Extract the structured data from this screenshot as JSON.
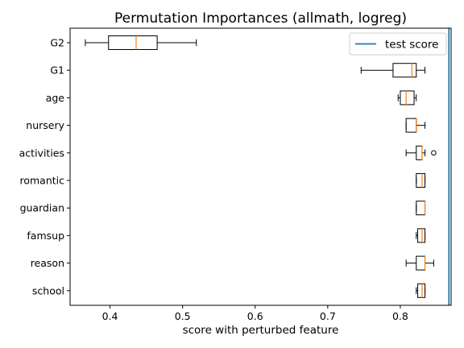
{
  "chart_data": {
    "type": "boxplot",
    "orientation": "horizontal",
    "title": "Permutation Importances (allmath, logreg)",
    "xlabel": "score with perturbed feature",
    "xlim": [
      0.345,
      0.87
    ],
    "xticks": [
      "0.4",
      "0.5",
      "0.6",
      "0.7",
      "0.8"
    ],
    "xtick_values": [
      0.4,
      0.5,
      0.6,
      0.7,
      0.8
    ],
    "grid": false,
    "legend": {
      "placement": "top-right",
      "label": "test score"
    },
    "reference_line": {
      "label": "test score",
      "value": 0.867,
      "color": "#1f77b4"
    },
    "colors": {
      "box": "#000000",
      "median": "#ff7f0e",
      "flier": "#000000"
    },
    "features": [
      {
        "name": "G2",
        "whisker_low": 0.366,
        "q1": 0.398,
        "median": 0.436,
        "q3": 0.465,
        "whisker_high": 0.519,
        "fliers": []
      },
      {
        "name": "G1",
        "whisker_low": 0.746,
        "q1": 0.79,
        "median": 0.816,
        "q3": 0.822,
        "whisker_high": 0.834,
        "fliers": []
      },
      {
        "name": "age",
        "whisker_low": 0.797,
        "q1": 0.8,
        "median": 0.808,
        "q3": 0.819,
        "whisker_high": 0.822,
        "fliers": []
      },
      {
        "name": "nursery",
        "whisker_low": 0.808,
        "q1": 0.808,
        "median": 0.822,
        "q3": 0.822,
        "whisker_high": 0.834,
        "fliers": []
      },
      {
        "name": "activities",
        "whisker_low": 0.808,
        "q1": 0.822,
        "median": 0.83,
        "q3": 0.83,
        "whisker_high": 0.834,
        "fliers": [
          0.846
        ]
      },
      {
        "name": "romantic",
        "whisker_low": 0.822,
        "q1": 0.822,
        "median": 0.83,
        "q3": 0.834,
        "whisker_high": 0.834,
        "fliers": []
      },
      {
        "name": "guardian",
        "whisker_low": 0.822,
        "q1": 0.822,
        "median": 0.834,
        "q3": 0.834,
        "whisker_high": 0.834,
        "fliers": []
      },
      {
        "name": "famsup",
        "whisker_low": 0.822,
        "q1": 0.824,
        "median": 0.83,
        "q3": 0.834,
        "whisker_high": 0.834,
        "fliers": []
      },
      {
        "name": "reason",
        "whisker_low": 0.808,
        "q1": 0.822,
        "median": 0.834,
        "q3": 0.834,
        "whisker_high": 0.846,
        "fliers": []
      },
      {
        "name": "school",
        "whisker_low": 0.822,
        "q1": 0.824,
        "median": 0.83,
        "q3": 0.834,
        "whisker_high": 0.834,
        "fliers": []
      }
    ]
  }
}
